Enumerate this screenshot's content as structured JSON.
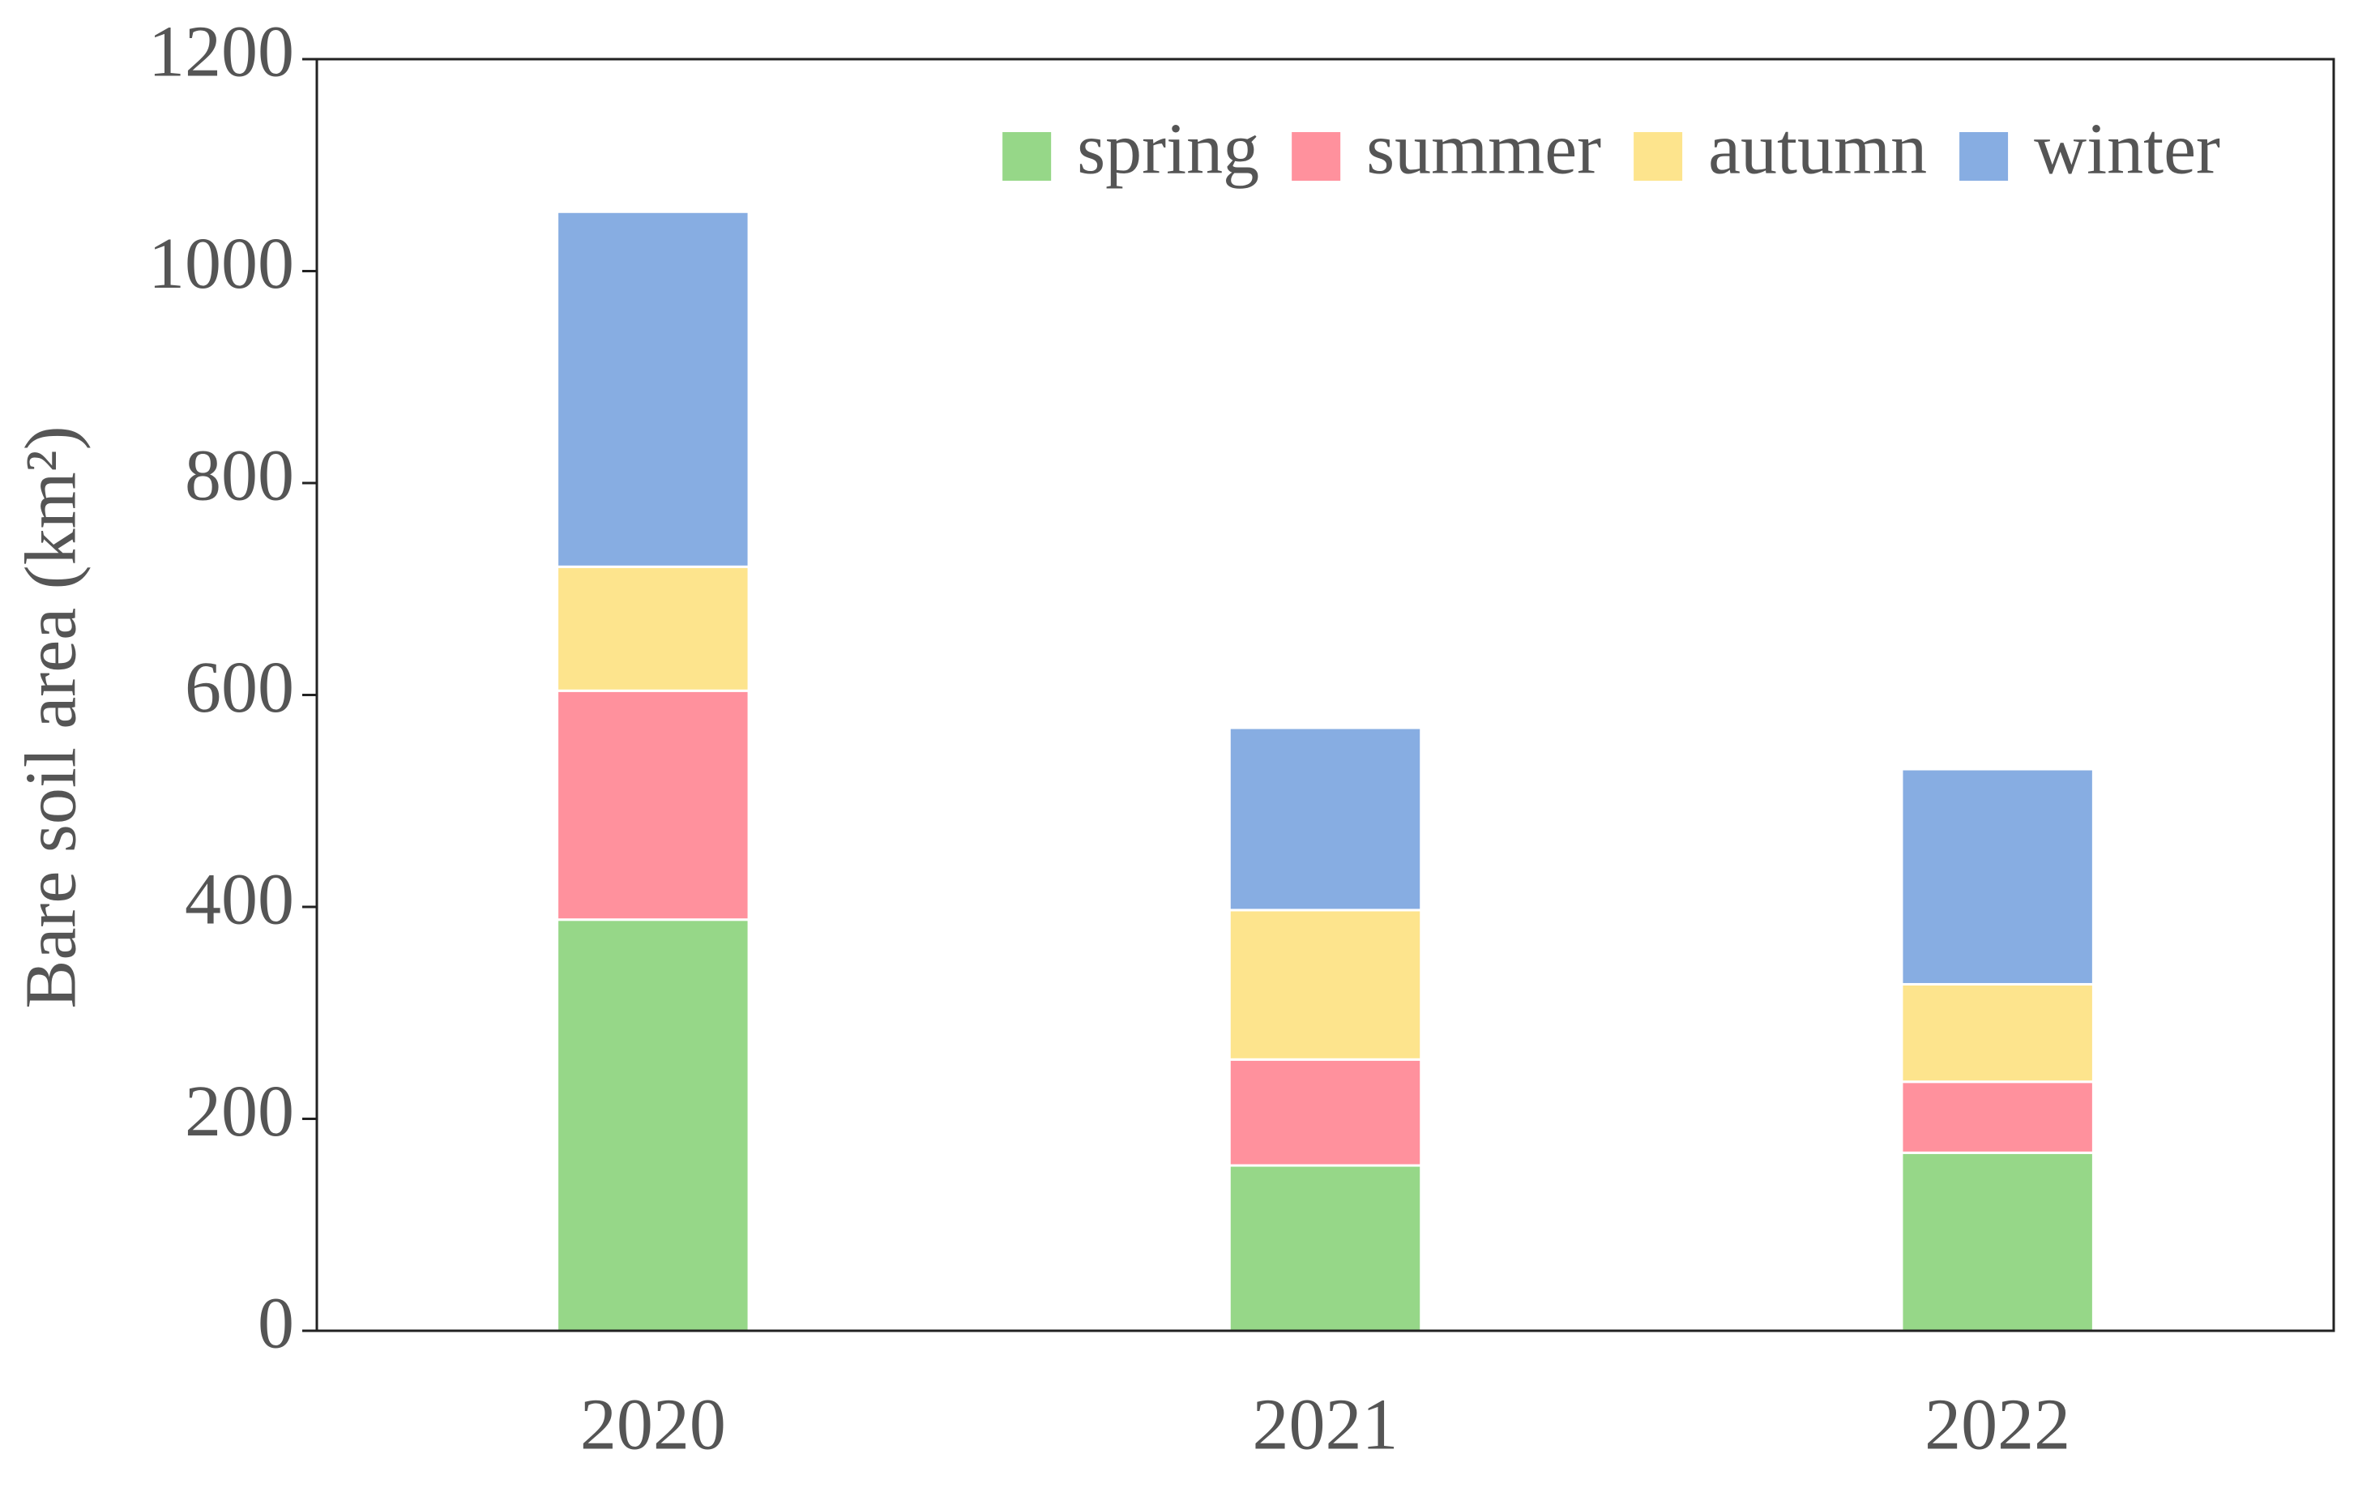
{
  "chart_data": {
    "type": "stacked_bar",
    "y_label": "Bare soil area (km²)",
    "categories": [
      "2020",
      "2021",
      "2022"
    ],
    "series": [
      {
        "name": "spring",
        "color": "#96d788",
        "values": [
          388,
          156,
          168
        ]
      },
      {
        "name": "summer",
        "color": "#ff919d",
        "values": [
          216,
          100,
          67
        ]
      },
      {
        "name": "autumn",
        "color": "#fde48d",
        "values": [
          117,
          141,
          92
        ]
      },
      {
        "name": "winter",
        "color": "#87ade2",
        "values": [
          335,
          172,
          203
        ]
      }
    ],
    "ylim": [
      0,
      1200
    ],
    "yticks": [
      0,
      200,
      400,
      600,
      800,
      1000,
      1200
    ],
    "legend": "top-right",
    "grid": false
  }
}
